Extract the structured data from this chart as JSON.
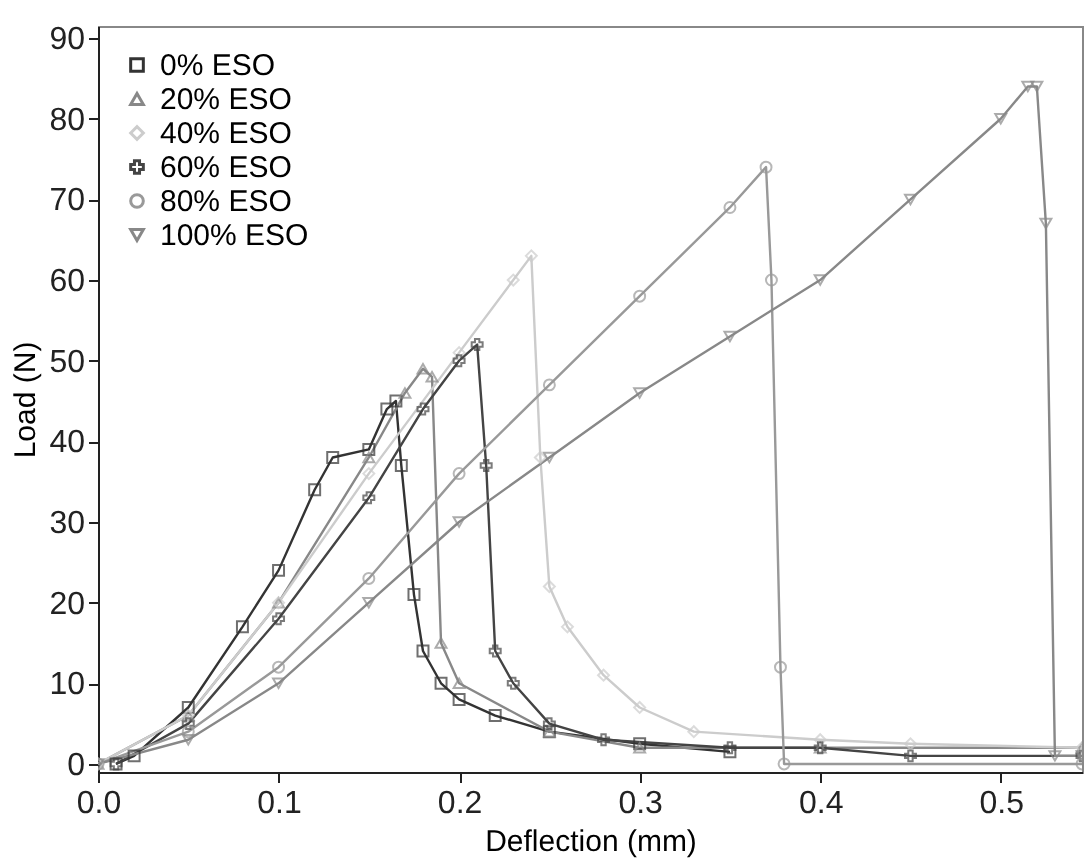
{
  "chart_data": {
    "type": "line",
    "xlabel": "Deflection (mm)",
    "ylabel": "Load (N)",
    "xlim": [
      0,
      0.545
    ],
    "ylim": [
      -1,
      91.5
    ],
    "xticks": [
      {
        "value": 0,
        "label": "0.0"
      },
      0.1,
      0.2,
      0.3,
      0.4,
      0.5
    ],
    "yticks": [
      0,
      10,
      20,
      30,
      40,
      50,
      60,
      70,
      80,
      90
    ],
    "grid": false,
    "legend": "top left",
    "line_style": "solid",
    "series": [
      {
        "name": "0% ESO",
        "color": "#333333",
        "marker": "square",
        "x": [
          0.01,
          0.02,
          0.05,
          0.08,
          0.1,
          0.12,
          0.13,
          0.15,
          0.16,
          0.165,
          0.168,
          0.175,
          0.18,
          0.19,
          0.2,
          0.22,
          0.25,
          0.3,
          0.35
        ],
        "values": [
          0,
          1,
          7,
          17,
          24,
          34,
          38,
          39,
          44,
          45,
          37,
          21,
          14,
          10,
          8,
          6,
          4,
          2.5,
          1.5
        ]
      },
      {
        "name": "20% ESO",
        "color": "#888888",
        "marker": "triangle",
        "x": [
          0,
          0.05,
          0.1,
          0.15,
          0.17,
          0.18,
          0.185,
          0.19,
          0.2,
          0.25,
          0.3,
          0.4,
          0.545
        ],
        "values": [
          0,
          6,
          20,
          38,
          46,
          49,
          48,
          15,
          10,
          4,
          2,
          2,
          2
        ]
      },
      {
        "name": "40% ESO",
        "color": "#cccccc",
        "marker": "diamond",
        "x": [
          0,
          0.05,
          0.1,
          0.15,
          0.2,
          0.23,
          0.24,
          0.245,
          0.25,
          0.26,
          0.28,
          0.3,
          0.33,
          0.4,
          0.45,
          0.545
        ],
        "values": [
          0,
          6,
          20,
          36,
          51,
          60,
          63,
          38,
          22,
          17,
          11,
          7,
          4,
          3,
          2.5,
          2
        ]
      },
      {
        "name": "60% ESO",
        "color": "#444444",
        "marker": "cross",
        "x": [
          0.01,
          0.05,
          0.1,
          0.15,
          0.18,
          0.2,
          0.21,
          0.215,
          0.22,
          0.23,
          0.25,
          0.28,
          0.35,
          0.4,
          0.45,
          0.545
        ],
        "values": [
          0,
          5,
          18,
          33,
          44,
          50,
          52,
          37,
          14,
          10,
          5,
          3,
          2,
          2,
          1,
          1
        ]
      },
      {
        "name": "80% ESO",
        "color": "#999999",
        "marker": "circle",
        "x": [
          0,
          0.05,
          0.1,
          0.15,
          0.2,
          0.25,
          0.3,
          0.35,
          0.37,
          0.373,
          0.378,
          0.38,
          0.545
        ],
        "values": [
          0,
          4,
          12,
          23,
          36,
          47,
          58,
          69,
          74,
          60,
          12,
          0,
          0
        ]
      },
      {
        "name": "100% ESO",
        "color": "#888888",
        "marker": "triangle-down",
        "x": [
          0,
          0.05,
          0.1,
          0.15,
          0.2,
          0.25,
          0.3,
          0.35,
          0.4,
          0.45,
          0.5,
          0.515,
          0.52,
          0.525,
          0.53,
          0.545
        ],
        "values": [
          0,
          3,
          10,
          20,
          30,
          38,
          46,
          53,
          60,
          70,
          80,
          84,
          84,
          67,
          1,
          1
        ]
      }
    ]
  }
}
